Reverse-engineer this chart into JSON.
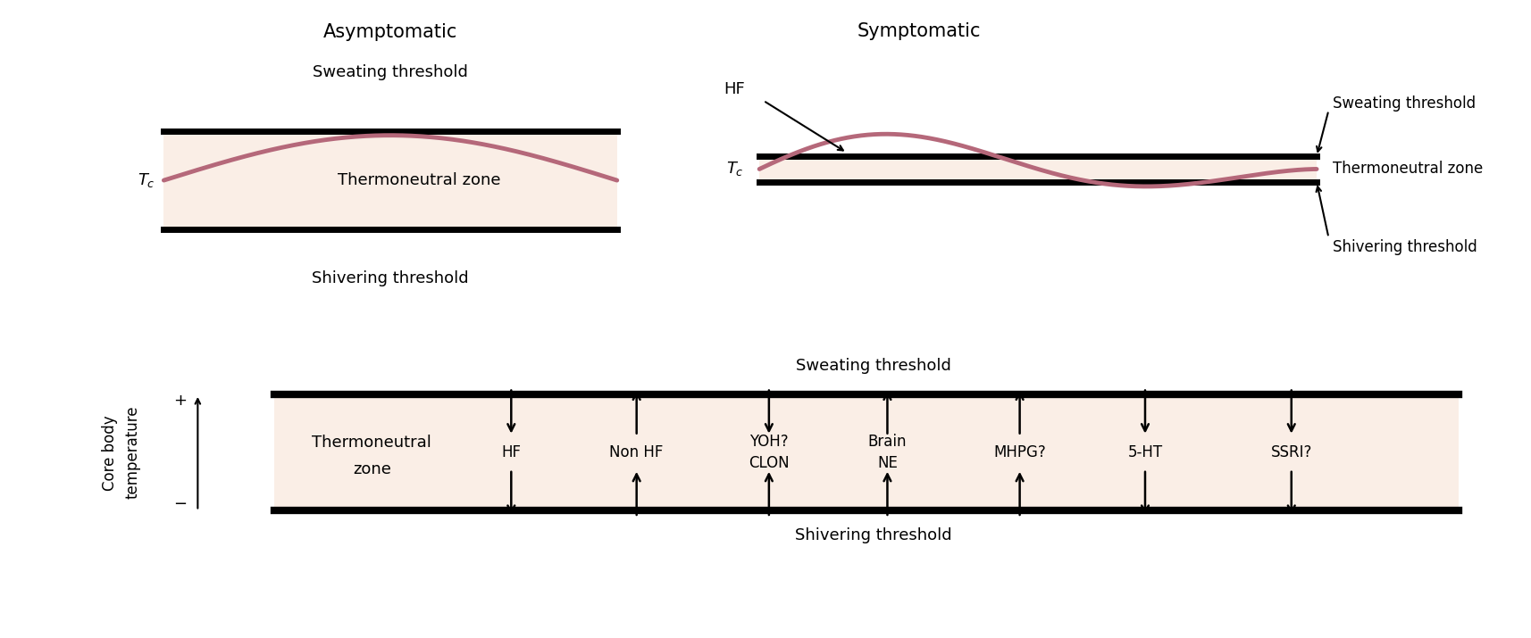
{
  "bg_color": "#ffffff",
  "fill_color": "#faeee6",
  "line_color": "#000000",
  "wave_color": "#b5687a",
  "title_fontsize": 15,
  "label_fontsize": 13,
  "small_fontsize": 12,
  "asym_title": "Asymptomatic",
  "asym_sweat": "Sweating threshold",
  "asym_shiver": "Shivering threshold",
  "asym_zone": "Thermoneutral zone",
  "asym_tc": "$T_c$",
  "sym_title": "Symptomatic",
  "sym_sweat": "Sweating threshold",
  "sym_shiver": "Shivering threshold",
  "sym_zone": "Thermoneutral zone",
  "sym_tc": "$T_c$",
  "sym_hf": "HF",
  "bottom_sweat": "Sweating threshold",
  "bottom_shiver": "Shivering threshold",
  "bottom_zone_line1": "Thermoneutral",
  "bottom_zone_line2": "zone",
  "bottom_ylabel": "Core body\ntemperature",
  "bottom_plus": "+",
  "bottom_minus": "−",
  "bottom_labels": [
    "HF",
    "Non HF",
    "YOH?\nCLON",
    "Brain\nNE",
    "MHPG?",
    "5-HT",
    "SSRI?"
  ],
  "bottom_arrow_dirs": [
    {
      "top_in": true,
      "bot_in": false
    },
    {
      "top_in": false,
      "bot_in": true
    },
    {
      "top_in": true,
      "bot_in": true
    },
    {
      "top_in": false,
      "bot_in": true
    },
    {
      "top_in": false,
      "bot_in": true
    },
    {
      "top_in": true,
      "bot_in": false
    },
    {
      "top_in": true,
      "bot_in": false
    }
  ]
}
